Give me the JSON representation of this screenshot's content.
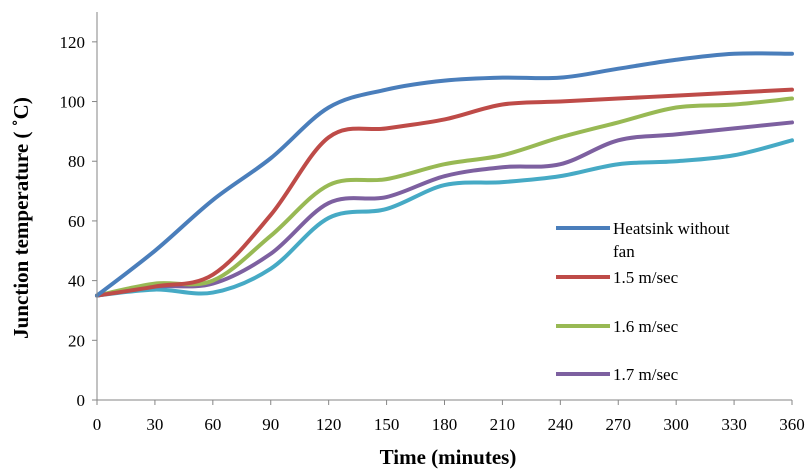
{
  "chart_data": {
    "type": "line",
    "xlabel": "Time (minutes)",
    "ylabel": "Junction temperature ( ˚C)",
    "x": [
      0,
      30,
      60,
      90,
      120,
      150,
      180,
      210,
      240,
      270,
      300,
      330,
      360
    ],
    "xticks": [
      "0",
      "30",
      "60",
      "90",
      "120",
      "150",
      "180",
      "210",
      "240",
      "270",
      "300",
      "330",
      "360"
    ],
    "yticks": [
      "0",
      "20",
      "40",
      "60",
      "80",
      "100",
      "120"
    ],
    "xlim": [
      0,
      360
    ],
    "ylim": [
      0,
      130
    ],
    "grid": false,
    "legend_position": "bottom-right",
    "series": [
      {
        "name": "Heatsink without fan",
        "color": "#4a7ebb",
        "values": [
          35,
          50,
          67,
          81,
          98,
          104,
          107,
          108,
          108,
          111,
          114,
          116,
          116
        ]
      },
      {
        "name": "1.5 m/sec",
        "color": "#be4b48",
        "values": [
          35,
          38,
          42,
          62,
          88,
          91,
          94,
          99,
          100,
          101,
          102,
          103,
          104
        ]
      },
      {
        "name": "1.6 m/sec",
        "color": "#98b954",
        "values": [
          35,
          39,
          40,
          55,
          72,
          74,
          79,
          82,
          88,
          93,
          98,
          99,
          101
        ]
      },
      {
        "name": "1.7 m/sec",
        "color": "#7d60a0",
        "values": [
          35,
          38,
          39,
          49,
          66,
          68,
          75,
          78,
          79,
          87,
          89,
          91,
          93
        ]
      },
      {
        "name": "",
        "color": "#46aac5",
        "values": [
          35,
          37,
          36,
          44,
          61,
          64,
          72,
          73,
          75,
          79,
          80,
          82,
          87
        ]
      }
    ]
  }
}
